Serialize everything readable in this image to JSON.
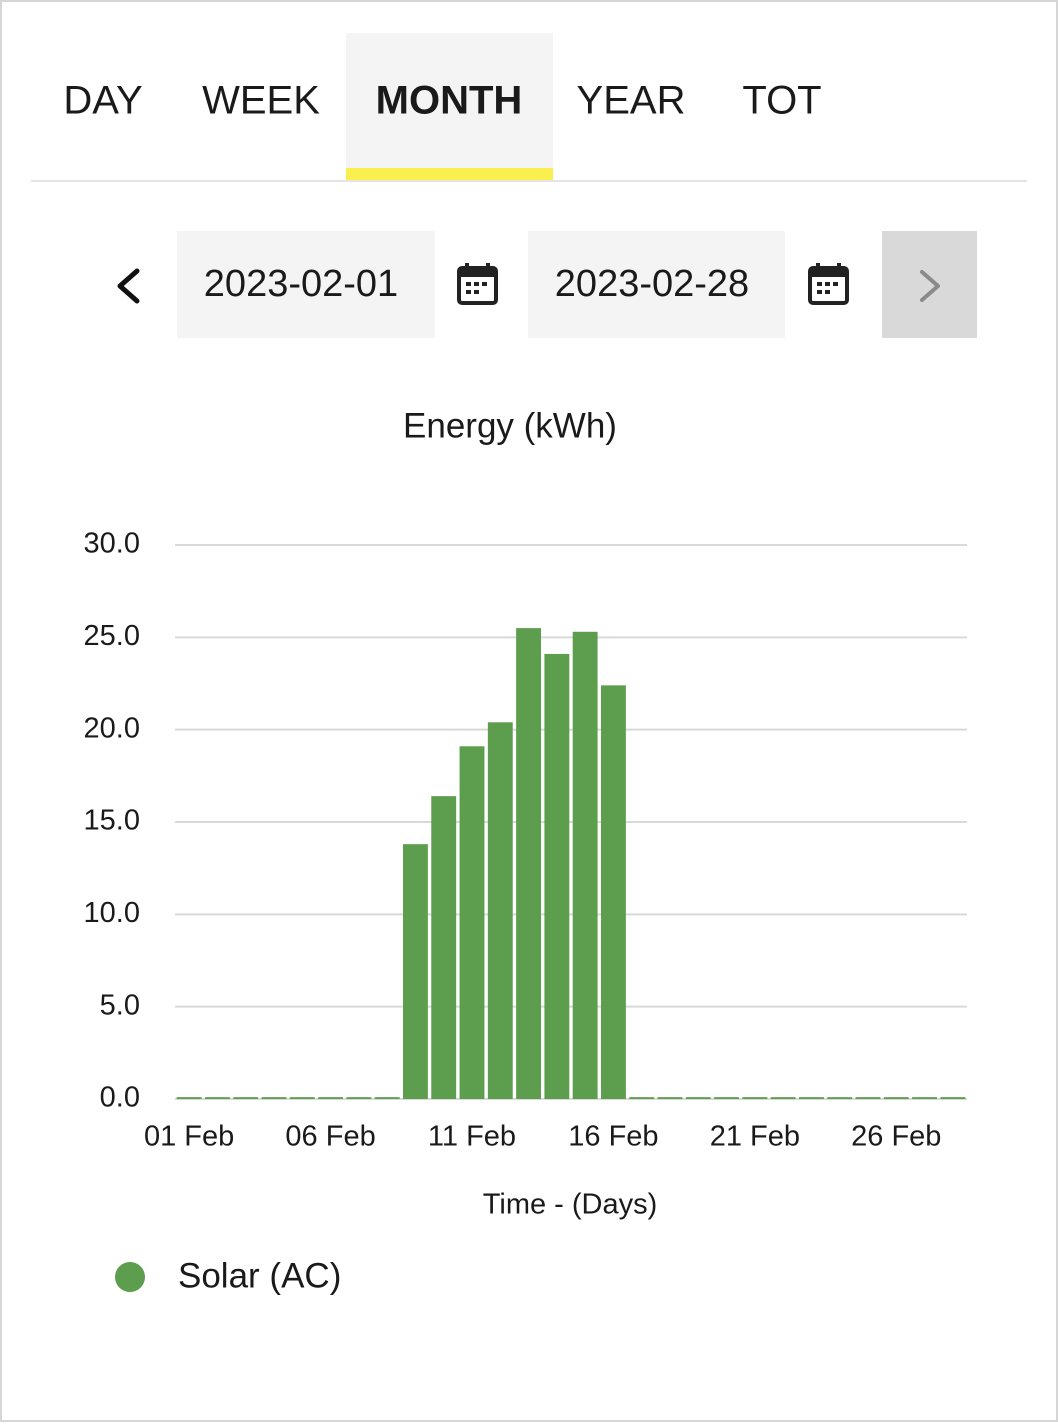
{
  "tabs": [
    "DAY",
    "WEEK",
    "MONTH",
    "YEAR",
    "TOT"
  ],
  "active_tab": 2,
  "date_range": {
    "start": "2023-02-01",
    "end": "2023-02-28"
  },
  "chart_data": {
    "type": "bar",
    "title": "Energy (kWh)",
    "x_label": "Time - (Days)",
    "categories": [
      "01 Feb",
      null,
      null,
      null,
      null,
      "06 Feb",
      null,
      null,
      null,
      null,
      "11 Feb",
      null,
      null,
      null,
      null,
      "16 Feb",
      null,
      null,
      null,
      null,
      "21 Feb",
      null,
      null,
      null,
      null,
      "26 Feb",
      null,
      null
    ],
    "series": [
      {
        "name": "Solar (AC)",
        "color": "#5c9e4d",
        "values": [
          0.1,
          0.1,
          0.1,
          0.1,
          0.1,
          0.1,
          0.1,
          0.1,
          13.8,
          16.4,
          19.1,
          20.4,
          25.5,
          24.1,
          25.3,
          22.4,
          0.1,
          0.1,
          0.1,
          0.1,
          0.1,
          0.1,
          0.1,
          0.1,
          0.1,
          0.1,
          0.1,
          0.1
        ]
      }
    ],
    "ylim": [
      0,
      30
    ],
    "yticks": [
      {
        "value": 0,
        "label": "0.0"
      },
      {
        "value": 5,
        "label": "5.0"
      },
      {
        "value": 10,
        "label": "10.0"
      },
      {
        "value": 15,
        "label": "15.0"
      },
      {
        "value": 20,
        "label": "20.0"
      },
      {
        "value": 25,
        "label": "25.0"
      },
      {
        "value": 30,
        "label": "30.0"
      }
    ],
    "grid": true,
    "legend": "bottom-left"
  }
}
